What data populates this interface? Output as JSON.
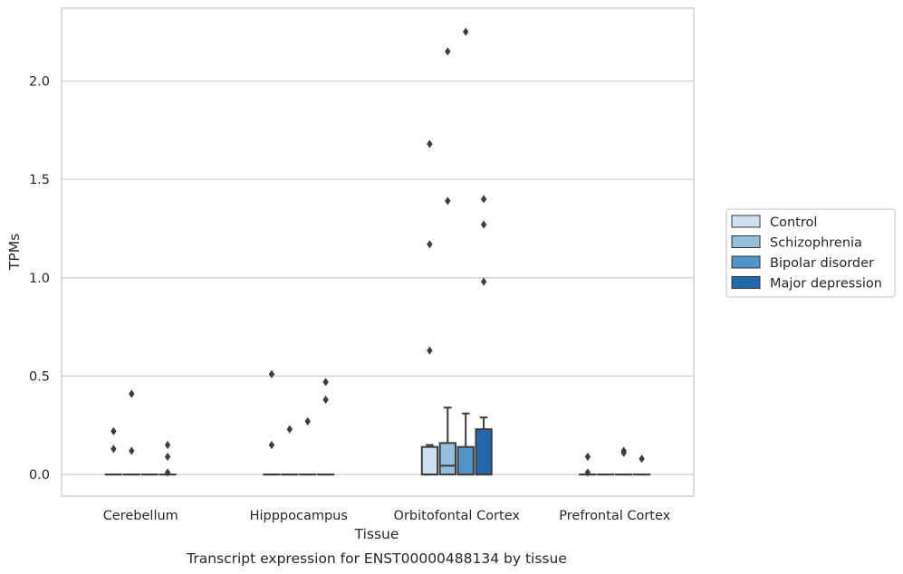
{
  "chart_data": {
    "type": "box",
    "xlabel": "Tissue",
    "ylabel": "TPMs",
    "caption": "Transcript expression for ENST00000488134 by tissue",
    "ylim": [
      -0.11,
      2.37
    ],
    "yticks": [
      "0.0",
      "0.5",
      "1.0",
      "1.5",
      "2.0"
    ],
    "grid": "horizontal",
    "legend_position": "right",
    "categories": [
      "Cerebellum",
      "Hipppocampus",
      "Orbitofontal Cortex",
      "Prefrontal Cortex"
    ],
    "series": [
      {
        "name": "Control",
        "color": "#cfe1f0",
        "boxes": [
          {
            "q1": 0,
            "median": 0,
            "q3": 0,
            "whisker_low": 0,
            "whisker_high": 0,
            "outliers": [
              0.22,
              0.13
            ]
          },
          {
            "q1": 0,
            "median": 0,
            "q3": 0,
            "whisker_low": 0,
            "whisker_high": 0,
            "outliers": [
              0.51,
              0.15
            ]
          },
          {
            "q1": 0,
            "median": 0,
            "q3": 0.14,
            "whisker_low": 0,
            "whisker_high": 0.15,
            "outliers": [
              1.68,
              1.17,
              0.63
            ]
          },
          {
            "q1": 0,
            "median": 0,
            "q3": 0,
            "whisker_low": 0,
            "whisker_high": 0,
            "outliers": [
              0.09,
              0.01
            ]
          }
        ]
      },
      {
        "name": "Schizophrenia",
        "color": "#93bfdb",
        "boxes": [
          {
            "q1": 0,
            "median": 0,
            "q3": 0,
            "whisker_low": 0,
            "whisker_high": 0,
            "outliers": [
              0.41,
              0.12
            ]
          },
          {
            "q1": 0,
            "median": 0,
            "q3": 0,
            "whisker_low": 0,
            "whisker_high": 0,
            "outliers": [
              0.23
            ]
          },
          {
            "q1": 0,
            "median": 0.045,
            "q3": 0.16,
            "whisker_low": 0,
            "whisker_high": 0.34,
            "outliers": [
              2.15,
              1.39
            ]
          },
          {
            "q1": 0,
            "median": 0,
            "q3": 0,
            "whisker_low": 0,
            "whisker_high": 0,
            "outliers": []
          }
        ]
      },
      {
        "name": "Bipolar disorder",
        "color": "#5195c8",
        "boxes": [
          {
            "q1": 0,
            "median": 0,
            "q3": 0,
            "whisker_low": 0,
            "whisker_high": 0,
            "outliers": []
          },
          {
            "q1": 0,
            "median": 0,
            "q3": 0,
            "whisker_low": 0,
            "whisker_high": 0,
            "outliers": [
              0.27
            ]
          },
          {
            "q1": 0,
            "median": 0,
            "q3": 0.14,
            "whisker_low": 0,
            "whisker_high": 0.31,
            "outliers": [
              2.25
            ]
          },
          {
            "q1": 0,
            "median": 0,
            "q3": 0,
            "whisker_low": 0,
            "whisker_high": 0,
            "outliers": [
              0.12,
              0.11
            ]
          }
        ]
      },
      {
        "name": "Major depression",
        "color": "#2268ab",
        "boxes": [
          {
            "q1": 0,
            "median": 0,
            "q3": 0,
            "whisker_low": 0,
            "whisker_high": 0,
            "outliers": [
              0.15,
              0.09,
              0.01
            ]
          },
          {
            "q1": 0,
            "median": 0,
            "q3": 0,
            "whisker_low": 0,
            "whisker_high": 0,
            "outliers": [
              0.47,
              0.38
            ]
          },
          {
            "q1": 0,
            "median": 0,
            "q3": 0.23,
            "whisker_low": 0,
            "whisker_high": 0.29,
            "outliers": [
              1.4,
              1.27,
              0.98
            ]
          },
          {
            "q1": 0,
            "median": 0,
            "q3": 0,
            "whisker_low": 0,
            "whisker_high": 0,
            "outliers": [
              0.08
            ]
          }
        ]
      }
    ]
  }
}
